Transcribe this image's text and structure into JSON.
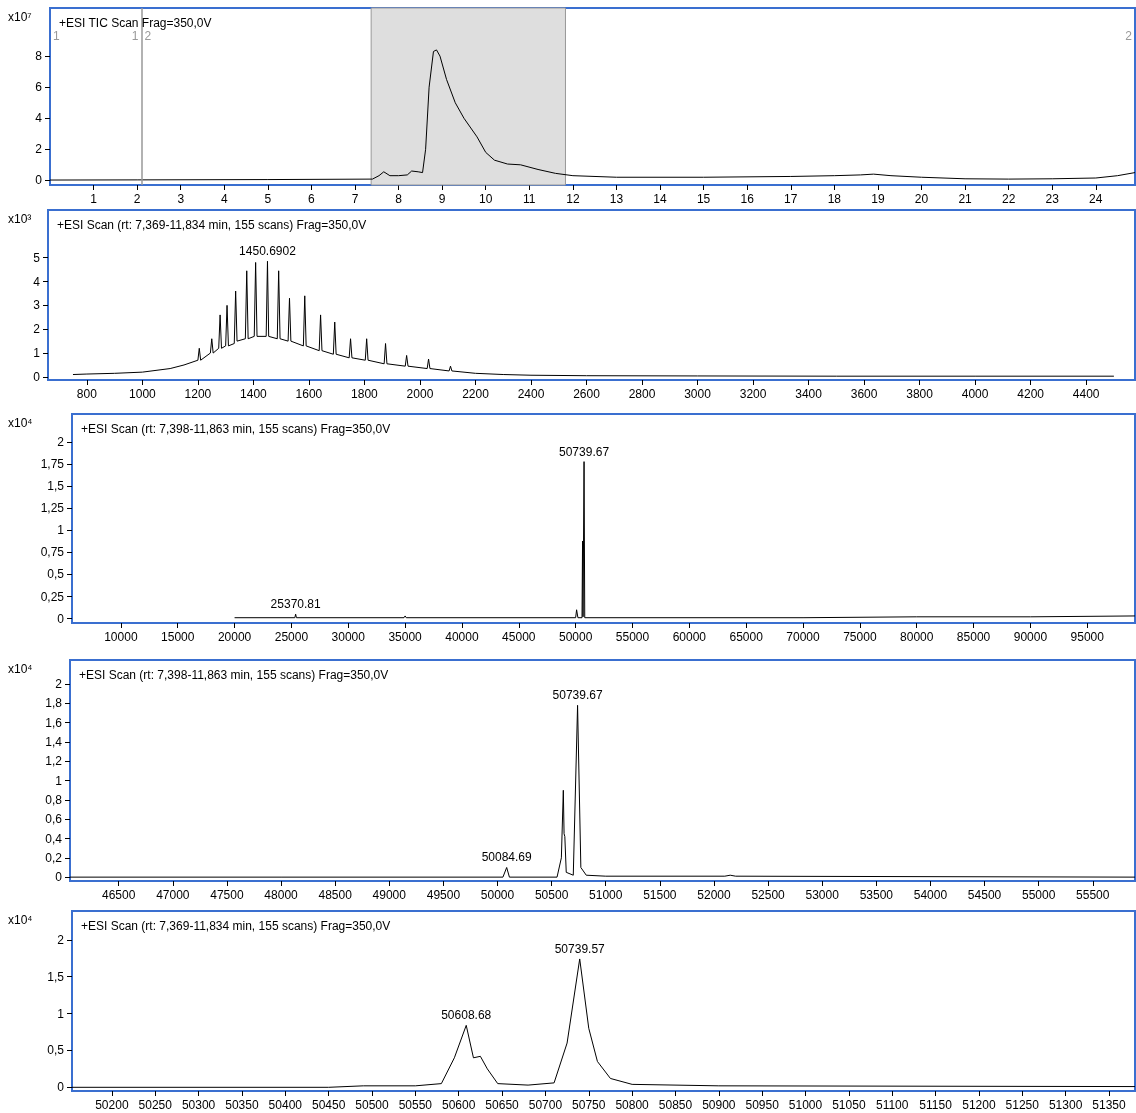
{
  "chart_data": [
    {
      "type": "line",
      "title": "+ESI TIC Scan Frag=350,0V",
      "ylabel": "x10⁷",
      "color": "#000000",
      "marker": "none",
      "line_style": "solid",
      "x": [
        0,
        2,
        5,
        7.4,
        7.55,
        7.66,
        7.8,
        8.0,
        8.2,
        8.3,
        8.45,
        8.55,
        8.62,
        8.7,
        8.8,
        8.87,
        8.95,
        9.1,
        9.3,
        9.5,
        9.8,
        10.0,
        10.2,
        10.5,
        10.8,
        11.2,
        11.6,
        12,
        13,
        15,
        17,
        18,
        18.6,
        18.9,
        19.3,
        20,
        21,
        22,
        23,
        24,
        24.5,
        24.9
      ],
      "values": [
        0.02,
        0.03,
        0.05,
        0.08,
        0.3,
        0.55,
        0.3,
        0.3,
        0.35,
        0.6,
        0.55,
        0.5,
        2,
        6,
        8.3,
        8.4,
        8,
        6.5,
        5,
        4,
        2.8,
        1.8,
        1.3,
        1.05,
        1.0,
        0.7,
        0.45,
        0.3,
        0.2,
        0.2,
        0.25,
        0.3,
        0.35,
        0.4,
        0.3,
        0.2,
        0.1,
        0.08,
        0.1,
        0.15,
        0.3,
        0.5
      ],
      "xlim": [
        0,
        24.9
      ],
      "ylim": [
        -0.3,
        11.1
      ],
      "xticks": [
        1,
        2,
        3,
        4,
        5,
        6,
        7,
        8,
        9,
        10,
        11,
        12,
        13,
        14,
        15,
        16,
        17,
        18,
        19,
        20,
        21,
        22,
        23,
        24
      ],
      "yticks": [
        0,
        2,
        4,
        6,
        8
      ],
      "bands": [
        {
          "axis": "x",
          "from": 7.37,
          "to": 11.83,
          "color": "#dedede"
        }
      ],
      "ref_lines": [
        {
          "axis": "x",
          "value": 2.1,
          "color": "#999999"
        }
      ],
      "annotations": [
        "1",
        "1",
        "2",
        "2"
      ]
    },
    {
      "type": "line",
      "title": "+ESI Scan (rt: 7,369-11,834 min, 155 scans) Frag=350,0V",
      "ylabel": "x10³",
      "color": "#000000",
      "marker": "none",
      "line_style": "solid",
      "x": [
        750,
        800,
        900,
        1000,
        1100,
        1150,
        1200,
        1205,
        1210,
        1245,
        1250,
        1255,
        1275,
        1280,
        1285,
        1300,
        1305,
        1310,
        1331,
        1336,
        1341,
        1371,
        1376,
        1381,
        1403,
        1408,
        1413,
        1446,
        1450.69,
        1455,
        1486,
        1491,
        1496,
        1525,
        1530,
        1535,
        1580,
        1585,
        1590,
        1637,
        1642,
        1647,
        1688,
        1693,
        1698,
        1745,
        1750,
        1755,
        1803,
        1808,
        1813,
        1871,
        1876,
        1881,
        1947,
        1952,
        1957,
        2026,
        2031,
        2036,
        2105,
        2110,
        2115,
        2200,
        2300,
        2400,
        2600,
        3000,
        3500,
        4000,
        4500
      ],
      "values": [
        0.1,
        0.12,
        0.15,
        0.2,
        0.35,
        0.5,
        0.7,
        1.2,
        0.7,
        1.0,
        1.6,
        1.0,
        1.2,
        2.6,
        1.2,
        1.3,
        3.0,
        1.3,
        1.4,
        3.6,
        1.5,
        1.6,
        4.45,
        1.6,
        1.7,
        4.8,
        1.7,
        1.7,
        4.85,
        1.7,
        1.6,
        4.45,
        1.6,
        1.5,
        3.3,
        1.5,
        1.3,
        3.4,
        1.3,
        1.1,
        2.6,
        1.1,
        0.95,
        2.3,
        0.95,
        0.8,
        1.6,
        0.8,
        0.7,
        1.6,
        0.7,
        0.55,
        1.4,
        0.55,
        0.45,
        0.9,
        0.45,
        0.35,
        0.75,
        0.35,
        0.25,
        0.45,
        0.25,
        0.15,
        0.1,
        0.07,
        0.05,
        0.04,
        0.03,
        0.03,
        0.03
      ],
      "xlim": [
        660,
        4576
      ],
      "ylim": [
        -0.13,
        7
      ],
      "xticks": [
        800,
        1000,
        1200,
        1400,
        1600,
        1800,
        2000,
        2200,
        2400,
        2600,
        2800,
        3000,
        3200,
        3400,
        3600,
        3800,
        4000,
        4200,
        4400
      ],
      "yticks": [
        0,
        1,
        2,
        3,
        4,
        5
      ],
      "annotations": [
        {
          "text": "1450.6902",
          "x": 1450.69,
          "y": 4.85
        }
      ]
    },
    {
      "type": "line",
      "title": "+ESI Scan (rt: 7,398-11,863 min, 155 scans) Frag=350,0V",
      "ylabel": "x10⁴",
      "color": "#000000",
      "marker": "none",
      "line_style": "solid",
      "x": [
        20000,
        25300,
        25370.81,
        25440,
        34900,
        35000,
        35100,
        50000,
        50084,
        50200,
        50560,
        50608,
        50650,
        50739.67,
        50800,
        70000,
        80000,
        90000,
        99200
      ],
      "values": [
        0.01,
        0.01,
        0.05,
        0.01,
        0.01,
        0.03,
        0.01,
        0.01,
        0.1,
        0.01,
        0.01,
        0.88,
        0.02,
        1.78,
        0.01,
        0.01,
        0.02,
        0.02,
        0.03
      ],
      "xlim": [
        5700,
        99200
      ],
      "ylim": [
        -0.05,
        2.32
      ],
      "xticks": [
        10000,
        15000,
        20000,
        25000,
        30000,
        35000,
        40000,
        45000,
        50000,
        55000,
        60000,
        65000,
        70000,
        75000,
        80000,
        85000,
        90000,
        95000
      ],
      "yticks": [
        0,
        {
          "value": 0.25,
          "label": "0,25"
        },
        {
          "value": 0.5,
          "label": "0,5"
        },
        {
          "value": 0.75,
          "label": "0,75"
        },
        1,
        {
          "value": 1.25,
          "label": "1,25"
        },
        {
          "value": 1.5,
          "label": "1,5"
        },
        {
          "value": 1.75,
          "label": "1,75"
        },
        2
      ],
      "annotations": [
        {
          "text": "25370.81",
          "x": 25370.81,
          "y": 0.05
        },
        {
          "text": "50739.67",
          "x": 50739.67,
          "y": 1.78
        }
      ]
    },
    {
      "type": "line",
      "title": "+ESI Scan (rt: 7,398-11,863 min, 155 scans) Frag=350,0V",
      "ylabel": "x10⁴",
      "color": "#000000",
      "marker": "none",
      "line_style": "solid",
      "x": [
        46050,
        48000,
        50050,
        50084.69,
        50110,
        50550,
        50590,
        50608,
        50615,
        50622,
        50635,
        50700,
        50739.67,
        50770,
        50820,
        51000,
        52100,
        52150,
        52200,
        55890
      ],
      "values": [
        0,
        0,
        0,
        0.1,
        0,
        0,
        0.2,
        0.9,
        0.45,
        0.42,
        0.05,
        0.02,
        1.78,
        0.1,
        0.02,
        0.01,
        0.01,
        0.02,
        0.01,
        0
      ],
      "xlim": [
        46050,
        55890
      ],
      "ylim": [
        -0.04,
        2.25
      ],
      "xticks": [
        46500,
        47000,
        47500,
        48000,
        48500,
        49000,
        49500,
        50000,
        50500,
        51000,
        51500,
        52000,
        52500,
        53000,
        53500,
        54000,
        54500,
        55000,
        55500
      ],
      "yticks": [
        0,
        {
          "value": 0.2,
          "label": "0,2"
        },
        {
          "value": 0.4,
          "label": "0,4"
        },
        {
          "value": 0.6,
          "label": "0,6"
        },
        {
          "value": 0.8,
          "label": "0,8"
        },
        1,
        {
          "value": 1.2,
          "label": "1,2"
        },
        {
          "value": 1.4,
          "label": "1,4"
        },
        {
          "value": 1.6,
          "label": "1,6"
        },
        {
          "value": 1.8,
          "label": "1,8"
        },
        2
      ],
      "annotations": [
        {
          "text": "50084.69",
          "x": 50084.69,
          "y": 0.1
        },
        {
          "text": "50739.67",
          "x": 50739.67,
          "y": 1.78
        }
      ]
    },
    {
      "type": "line",
      "title": "+ESI Scan (rt: 7,369-11,834 min, 155 scans) Frag=350,0V",
      "ylabel": "x10⁴",
      "color": "#000000",
      "marker": "none",
      "line_style": "solid",
      "x": [
        50154,
        50450,
        50490,
        50550,
        50580,
        50595,
        50608.68,
        50617,
        50625,
        50633,
        50645,
        50680,
        50710,
        50725,
        50739.57,
        50750,
        50760,
        50775,
        50800,
        50900,
        51380
      ],
      "values": [
        0,
        0,
        0.02,
        0.02,
        0.05,
        0.4,
        0.84,
        0.4,
        0.42,
        0.25,
        0.05,
        0.03,
        0.06,
        0.6,
        1.74,
        0.8,
        0.35,
        0.12,
        0.04,
        0.02,
        0.01
      ],
      "xlim": [
        50154,
        51380
      ],
      "ylim": [
        -0.05,
        2.39
      ],
      "xticks": [
        50200,
        50250,
        50300,
        50350,
        50400,
        50450,
        50500,
        50550,
        50600,
        50650,
        50700,
        50750,
        50800,
        50850,
        50900,
        50950,
        51000,
        51050,
        51100,
        51150,
        51200,
        51250,
        51300,
        51350
      ],
      "yticks": [
        0,
        {
          "value": 0.5,
          "label": "0,5"
        },
        1,
        {
          "value": 1.5,
          "label": "1,5"
        },
        2
      ],
      "annotations": [
        {
          "text": "50608.68",
          "x": 50608.68,
          "y": 0.84
        },
        {
          "text": "50739.57",
          "x": 50739.57,
          "y": 1.74
        }
      ]
    }
  ]
}
